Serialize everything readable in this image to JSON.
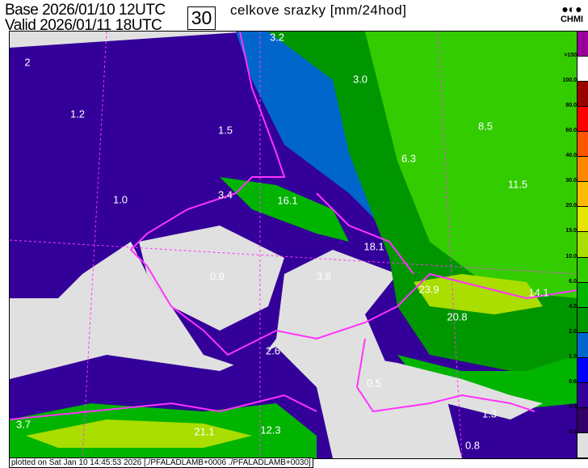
{
  "header": {
    "base_label": "Base",
    "base_value": "2026/01/10 12UTC",
    "valid_label": "Valid",
    "valid_value": "2026/01/11 18UTC",
    "lead_hours": "30",
    "title": "celkove srazky [mm/24hod]",
    "logo": "CHMI"
  },
  "colorbar": {
    "labels": [
      ">150",
      "100.0",
      "80.0",
      "60.0",
      "40.0",
      "30.0",
      "20.0",
      "15.0",
      "10.0",
      "6.0",
      "4.0",
      "2.0",
      "1.0",
      "0.6",
      "0.3",
      "0.1"
    ],
    "colors": [
      "#990099",
      "#ffffff",
      "#990000",
      "#ff0000",
      "#ff5500",
      "#ff8800",
      "#ffbb00",
      "#e5e500",
      "#aadd00",
      "#33cc00",
      "#00b400",
      "#009600",
      "#0066cc",
      "#0000ff",
      "#330099",
      "#330066",
      "#e0e0e0"
    ]
  },
  "map": {
    "values": [
      "3.2",
      "2",
      "1.2",
      "1.5",
      "3.0",
      "8.5",
      "6.3",
      "11.5",
      "1.0",
      "3.4",
      "16.1",
      "18.1",
      "0.9",
      "3.8",
      "23.9",
      "14.1",
      "20.8",
      "2.6",
      "0.5",
      "1.3",
      "3.7",
      "21.1",
      "12.3",
      "0.8"
    ],
    "border_color": "#ff33ff",
    "background_color": "#e0e0e0"
  },
  "footer": {
    "text": "plotted on Sat Jan 10 14:45:53 2026 [./PFALADLAMB+0006 ./PFALADLAMB+0030]"
  }
}
